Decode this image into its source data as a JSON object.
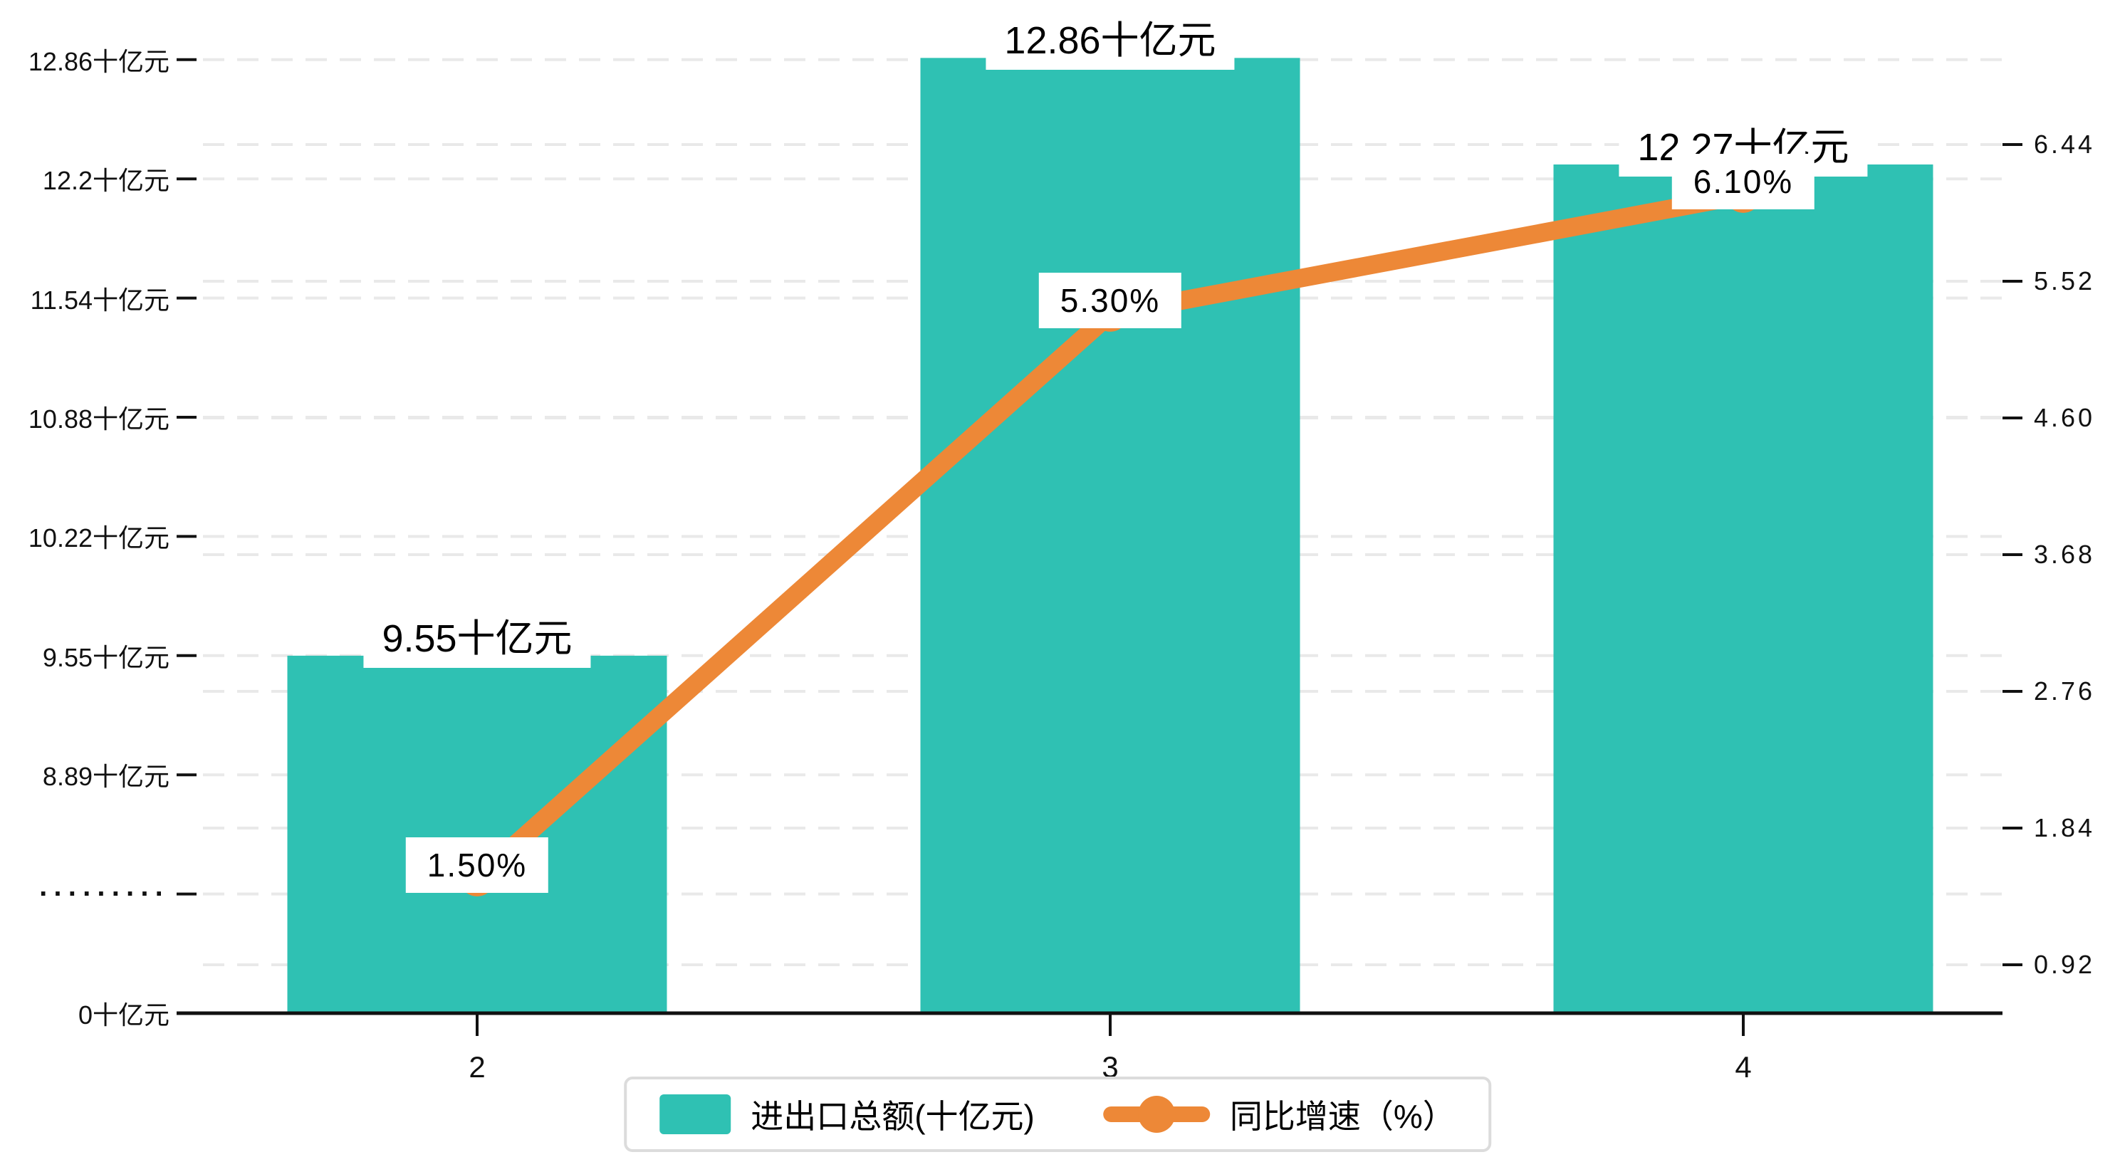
{
  "chart_data": {
    "type": "bar",
    "subtype": "bar-line-dual-axis",
    "categories": [
      "2",
      "3",
      "4"
    ],
    "series": [
      {
        "name": "进出口总额(十亿元)",
        "type": "bar",
        "axis": "left",
        "color": "#2fc1b3",
        "values": [
          9.55,
          12.86,
          12.27
        ],
        "data_labels": [
          "9.55十亿元",
          "12.86十亿元",
          "12.27十亿元"
        ]
      },
      {
        "name": "同比增速（%）",
        "type": "line",
        "axis": "right",
        "color": "#ed8837",
        "values": [
          1.5,
          5.3,
          6.1
        ],
        "data_labels": [
          "1.50%",
          "5.30%",
          "6.10%"
        ]
      }
    ],
    "left_axis": {
      "unit": "十亿元",
      "broken_axis": true,
      "ticks": [
        {
          "label": "0十亿元",
          "value": 0
        },
        {
          "label": "·········",
          "value": null
        },
        {
          "label": "8.89十亿元",
          "value": 8.89
        },
        {
          "label": "9.55十亿元",
          "value": 9.55
        },
        {
          "label": "10.22十亿元",
          "value": 10.22
        },
        {
          "label": "10.88十亿元",
          "value": 10.88
        },
        {
          "label": "11.54十亿元",
          "value": 11.54
        },
        {
          "label": "12.2十亿元",
          "value": 12.2
        },
        {
          "label": "12.86十亿元",
          "value": 12.86
        }
      ]
    },
    "right_axis": {
      "unit": "%",
      "ticks": [
        {
          "label": "0.92",
          "value": 0.92
        },
        {
          "label": "1.84",
          "value": 1.84
        },
        {
          "label": "2.76",
          "value": 2.76
        },
        {
          "label": "3.68",
          "value": 3.68
        },
        {
          "label": "4.60",
          "value": 4.6
        },
        {
          "label": "5.52",
          "value": 5.52
        },
        {
          "label": "6.44",
          "value": 6.44
        }
      ]
    },
    "grid": true,
    "gridline_color": "#e9e9e9",
    "axis_color": "#111111",
    "legend_position": "bottom",
    "legend_border_color": "#dcdcdc",
    "background_color": "#ffffff",
    "title": "",
    "xlabel": "",
    "ylabel": ""
  }
}
